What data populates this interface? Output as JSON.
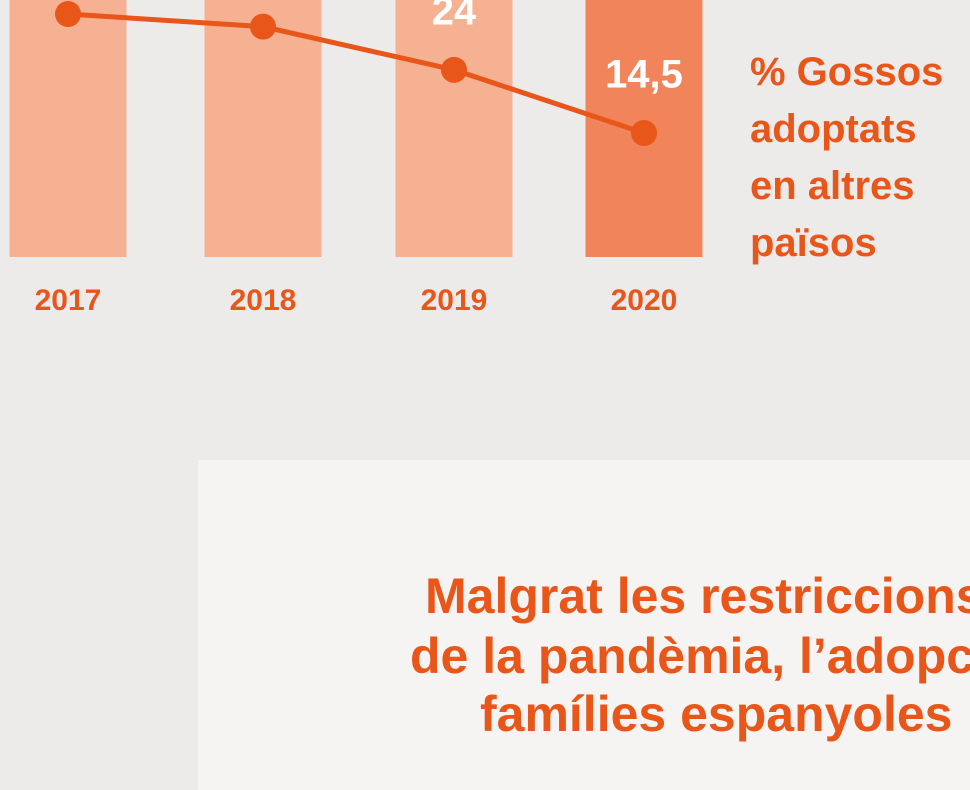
{
  "chart_data": {
    "type": "line",
    "categories": [
      "2017",
      "2018",
      "2019",
      "2020"
    ],
    "series": [
      {
        "name": "% Gossos adoptats en altres països",
        "color": "#e8561a",
        "values": [
          32.4,
          30.5,
          24,
          14.5
        ],
        "value_labels": [
          null,
          null,
          "24",
          "14,5"
        ]
      }
    ],
    "bar_colors": [
      "#f6b193",
      "#f6b193",
      "#f6b193",
      "#f1845a"
    ]
  },
  "article": {
    "heading": [
      "Malgrat les restriccions",
      "de la pandèmia, l’adopc",
      "famílies espanyoles"
    ]
  }
}
